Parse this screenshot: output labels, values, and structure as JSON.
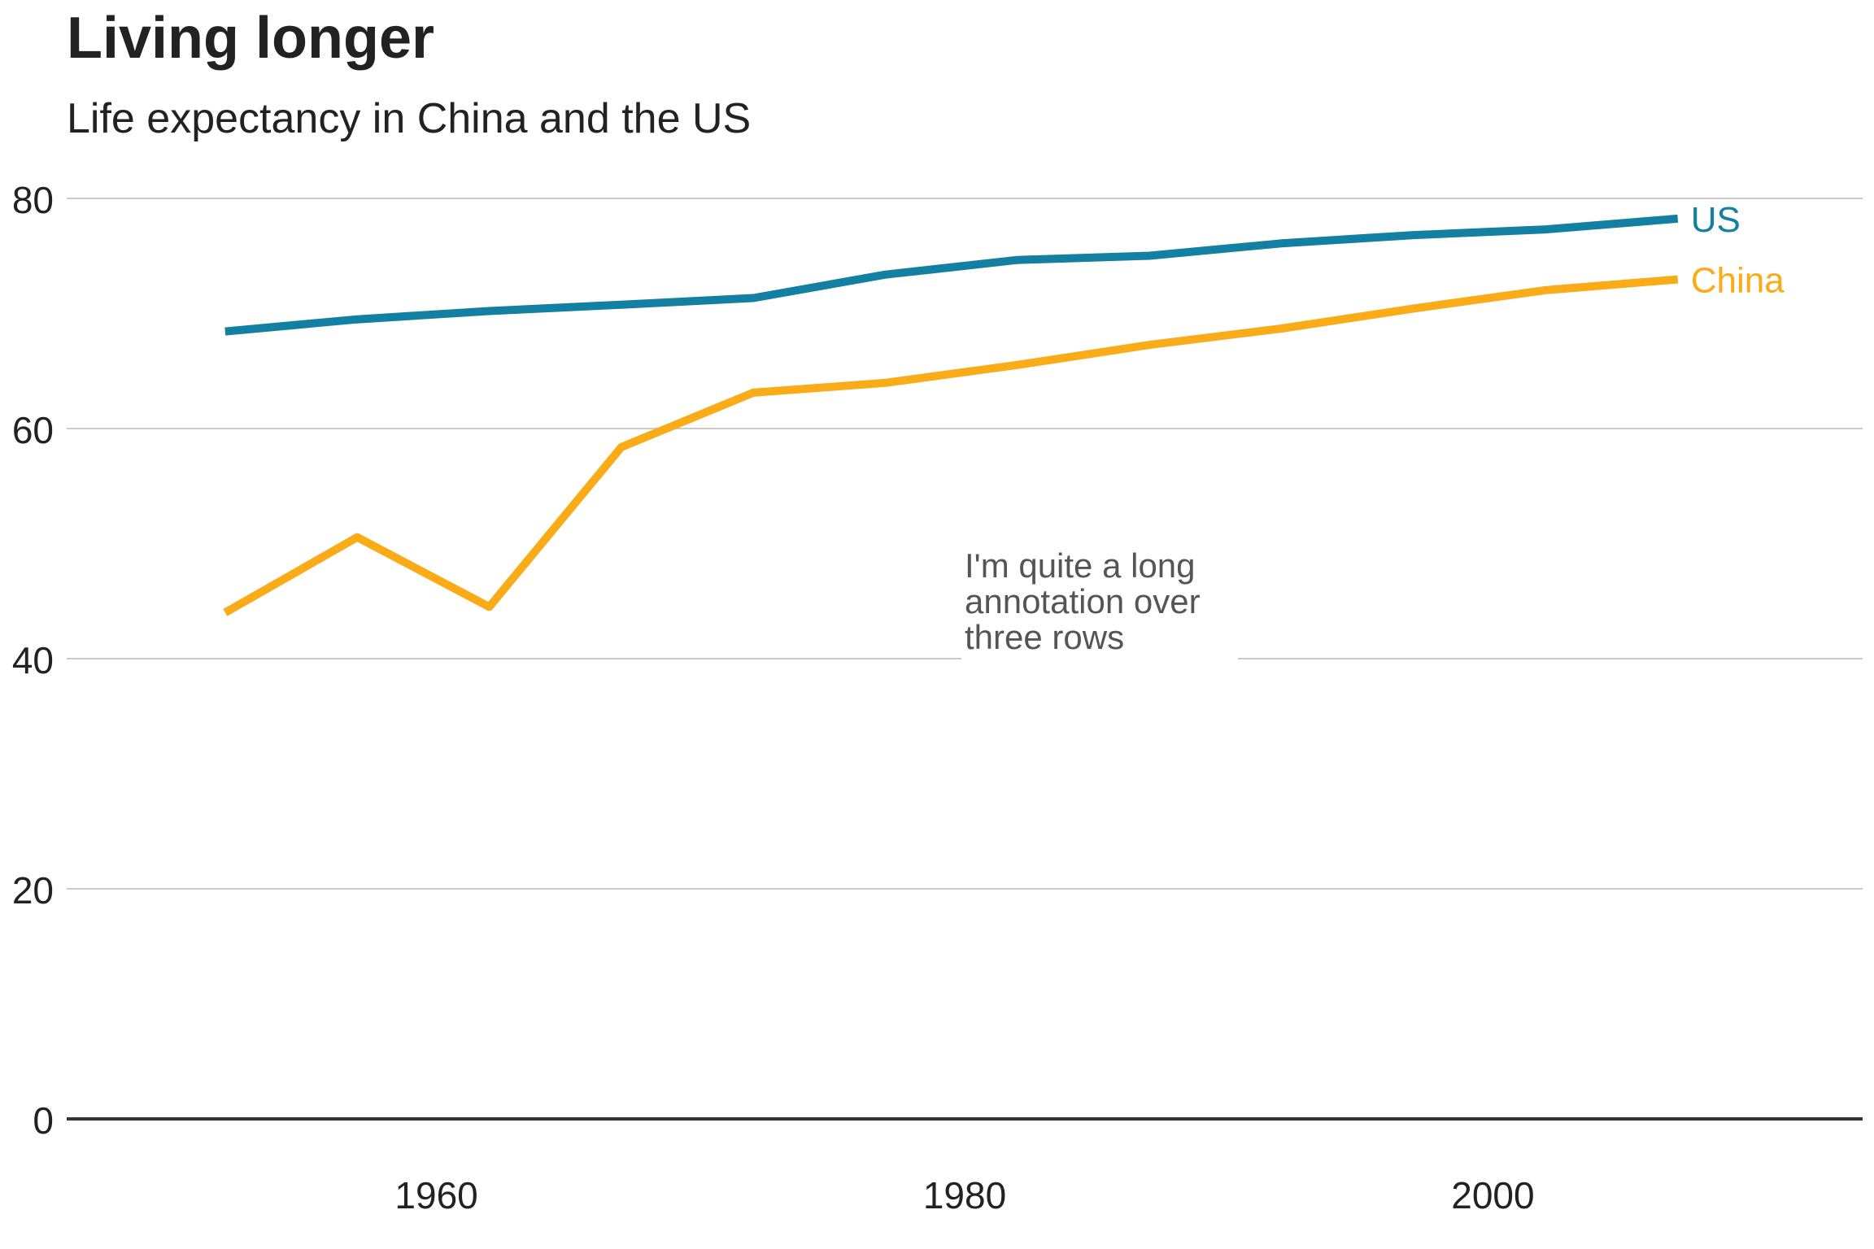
{
  "chart_data": {
    "type": "line",
    "title": "Living longer",
    "subtitle": "Life expectancy in China and the US",
    "xlabel": "",
    "ylabel": "",
    "x": [
      1952,
      1957,
      1962,
      1967,
      1972,
      1977,
      1982,
      1987,
      1992,
      1997,
      2002,
      2007
    ],
    "xlim": [
      1946,
      2014
    ],
    "ylim": [
      0,
      80
    ],
    "x_ticks": [
      1960,
      1980,
      2000
    ],
    "y_ticks": [
      0,
      20,
      40,
      60,
      80
    ],
    "grid": "horizontal",
    "series": [
      {
        "name": "US",
        "color": "#1380A1",
        "values": [
          68.44,
          69.49,
          70.21,
          70.76,
          71.34,
          73.38,
          74.65,
          75.02,
          76.09,
          76.81,
          77.31,
          78.24
        ]
      },
      {
        "name": "China",
        "color": "#FAAB18",
        "values": [
          44.0,
          50.55,
          44.5,
          58.38,
          63.12,
          63.97,
          65.53,
          67.27,
          68.69,
          70.43,
          72.03,
          72.96
        ]
      }
    ],
    "annotation": {
      "lines": [
        "I'm quite a long",
        "annotation over",
        "three rows"
      ],
      "x": 1980,
      "y": 40
    }
  }
}
